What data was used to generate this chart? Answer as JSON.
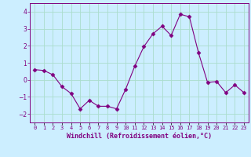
{
  "x": [
    0,
    1,
    2,
    3,
    4,
    5,
    6,
    7,
    8,
    9,
    10,
    11,
    12,
    13,
    14,
    15,
    16,
    17,
    18,
    19,
    20,
    21,
    22,
    23
  ],
  "y": [
    0.6,
    0.55,
    0.3,
    -0.4,
    -0.8,
    -1.7,
    -1.2,
    -1.55,
    -1.55,
    -1.7,
    -0.55,
    0.8,
    1.95,
    2.7,
    3.15,
    2.6,
    3.85,
    3.7,
    1.6,
    -0.15,
    -0.1,
    -0.75,
    -0.3,
    -0.75
  ],
  "line_color": "#800080",
  "marker": "D",
  "marker_size": 2.5,
  "bg_color": "#cceeff",
  "grid_color": "#aaddcc",
  "xlabel": "Windchill (Refroidissement éolien,°C)",
  "xlabel_color": "#800080",
  "tick_color": "#800080",
  "spine_color": "#800080",
  "ylim": [
    -2.5,
    4.5
  ],
  "xlim": [
    -0.5,
    23.5
  ],
  "yticks": [
    -2,
    -1,
    0,
    1,
    2,
    3,
    4
  ],
  "xtick_labels": [
    "0",
    "1",
    "2",
    "3",
    "4",
    "5",
    "6",
    "7",
    "8",
    "9",
    "10",
    "11",
    "12",
    "13",
    "14",
    "15",
    "16",
    "17",
    "18",
    "19",
    "20",
    "21",
    "22",
    "23"
  ]
}
